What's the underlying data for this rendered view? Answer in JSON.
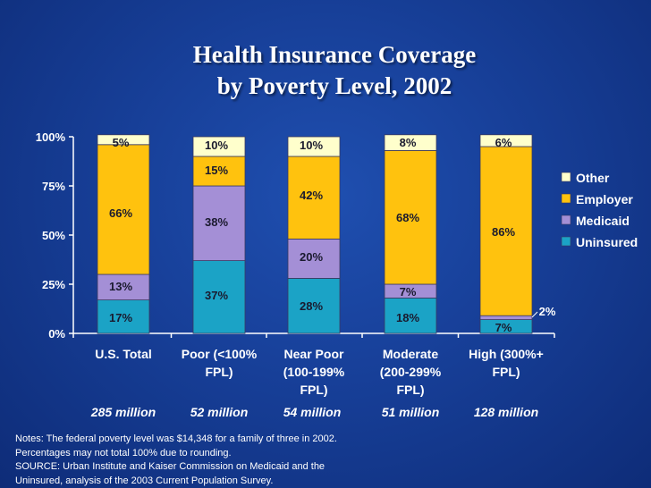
{
  "title_line1": "Health Insurance Coverage",
  "title_line2": "by Poverty Level, 2002",
  "chart_data": {
    "type": "bar",
    "stacked": true,
    "categories": [
      [
        "U.S. Total"
      ],
      [
        "Poor (<100%",
        "FPL)"
      ],
      [
        "Near Poor",
        "(100-199%",
        "FPL)"
      ],
      [
        "Moderate",
        "(200-299%",
        "FPL)"
      ],
      [
        "High (300%+",
        "FPL)"
      ]
    ],
    "populations": [
      "285 million",
      "52 million",
      "54 million",
      "51 million",
      "128 million"
    ],
    "series": [
      {
        "name": "Uninsured",
        "color": "#1ba3c6",
        "values": [
          17,
          37,
          28,
          18,
          7
        ],
        "labels": [
          "17%",
          "37%",
          "28%",
          "18%",
          "7%"
        ]
      },
      {
        "name": "Medicaid",
        "color": "#a48fd6",
        "values": [
          13,
          38,
          20,
          7,
          2
        ],
        "labels": [
          "13%",
          "38%",
          "20%",
          "7%",
          "2%"
        ]
      },
      {
        "name": "Employer",
        "color": "#ffc20e",
        "values": [
          66,
          15,
          42,
          68,
          86
        ],
        "labels": [
          "66%",
          "15%",
          "42%",
          "68%",
          "86%"
        ]
      },
      {
        "name": "Other",
        "color": "#ffffcc",
        "values": [
          5,
          10,
          10,
          8,
          6
        ],
        "labels": [
          "5%",
          "10%",
          "10%",
          "8%",
          "6%"
        ]
      }
    ],
    "legend_order": [
      "Other",
      "Employer",
      "Medicaid",
      "Uninsured"
    ],
    "legend_position": "right",
    "yticks": [
      "0%",
      "25%",
      "50%",
      "75%",
      "100%"
    ],
    "ylim": [
      0,
      100
    ],
    "grid": false
  },
  "notes": [
    "Notes: The federal poverty level was $14,348 for a family of three in 2002.",
    "Percentages may not total 100% due to rounding.",
    "SOURCE: Urban Institute and Kaiser Commission on Medicaid and the",
    "Uninsured, analysis of the 2003 Current Population Survey."
  ]
}
